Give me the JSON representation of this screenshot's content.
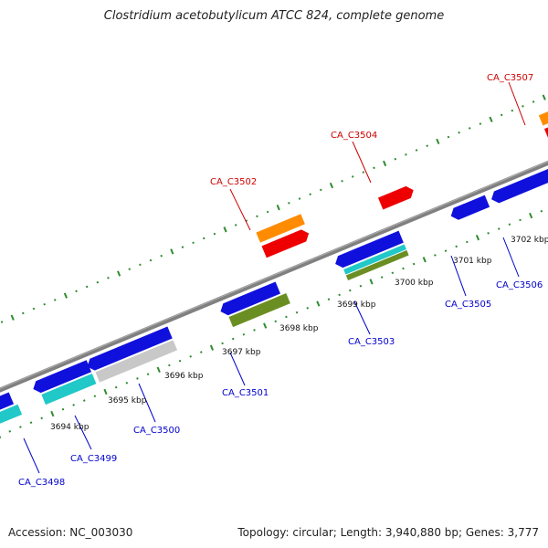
{
  "title": "Clostridium acetobutylicum ATCC 824, complete genome",
  "footer": {
    "accession": "Accession: NC_003030",
    "summary": "Topology: circular; Length: 3,940,880 bp; Genes: 3,777"
  },
  "colors": {
    "backbone": "#808080",
    "tick": "#2e8b2e",
    "label_forward": "#cc0000",
    "label_reverse": "#0000cc"
  },
  "kbp_ticks": [
    "3694 kbp",
    "3695 kbp",
    "3696 kbp",
    "3697 kbp",
    "3698 kbp",
    "3699 kbp",
    "3700 kbp",
    "3701 kbp",
    "3702 kbp"
  ],
  "forward_labels": [
    "CA_C3502",
    "CA_C3504",
    "CA_C3507"
  ],
  "reverse_labels": [
    "CA_C3498",
    "CA_C3499",
    "CA_C3500",
    "CA_C3501",
    "CA_C3503",
    "CA_C3505",
    "CA_C3506"
  ]
}
